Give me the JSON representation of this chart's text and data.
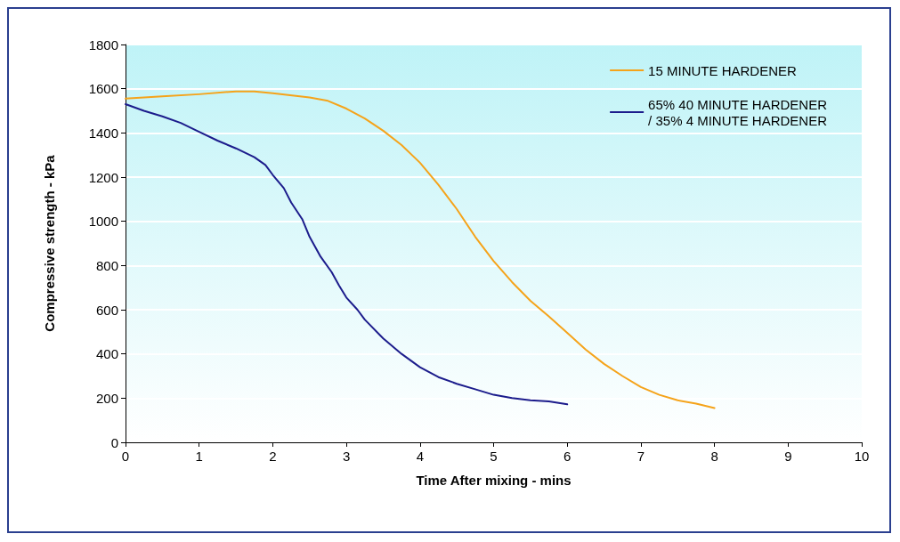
{
  "chart_data": {
    "type": "line",
    "xlabel": "Time After mixing - mins",
    "ylabel": "Compressive strength - kPa",
    "xlim": [
      0,
      10
    ],
    "xticks": [
      0,
      1,
      2,
      3,
      4,
      5,
      6,
      7,
      8,
      9,
      10
    ],
    "ylim": [
      0,
      1800
    ],
    "yticks": [
      0,
      200,
      400,
      600,
      800,
      1000,
      1200,
      1400,
      1600,
      1800
    ],
    "grid": "y",
    "legend": "top right",
    "marker": "none",
    "line_style": "solid",
    "series": [
      {
        "name": "15 MINUTE HARDENER",
        "color": "#f5a31a",
        "x": [
          0,
          0.5,
          1,
          1.5,
          1.75,
          2,
          2.5,
          2.75,
          3,
          3.25,
          3.5,
          3.75,
          4,
          4.25,
          4.5,
          4.75,
          5,
          5.25,
          5.5,
          5.75,
          6,
          6.25,
          6.5,
          6.75,
          7,
          7.25,
          7.5,
          7.75,
          8
        ],
        "values": [
          1555,
          1565,
          1575,
          1588,
          1588,
          1580,
          1560,
          1545,
          1510,
          1465,
          1410,
          1345,
          1265,
          1165,
          1055,
          930,
          820,
          725,
          640,
          570,
          495,
          420,
          355,
          300,
          250,
          215,
          190,
          175,
          155
        ]
      },
      {
        "name": "65% 40 MINUTE HARDENER\n/ 35% 4 MINUTE HARDENER",
        "color": "#1c1c8c",
        "x": [
          0,
          0.25,
          0.5,
          0.75,
          1,
          1.25,
          1.5,
          1.75,
          1.9,
          2,
          2.15,
          2.25,
          2.4,
          2.5,
          2.65,
          2.8,
          2.9,
          3,
          3.15,
          3.25,
          3.5,
          3.75,
          4,
          4.25,
          4.5,
          4.75,
          5,
          5.25,
          5.5,
          5.75,
          6
        ],
        "values": [
          1530,
          1500,
          1475,
          1445,
          1405,
          1365,
          1330,
          1290,
          1255,
          1210,
          1150,
          1085,
          1010,
          930,
          840,
          770,
          710,
          655,
          600,
          555,
          470,
          400,
          340,
          295,
          265,
          240,
          215,
          200,
          190,
          185,
          172
        ]
      }
    ]
  }
}
